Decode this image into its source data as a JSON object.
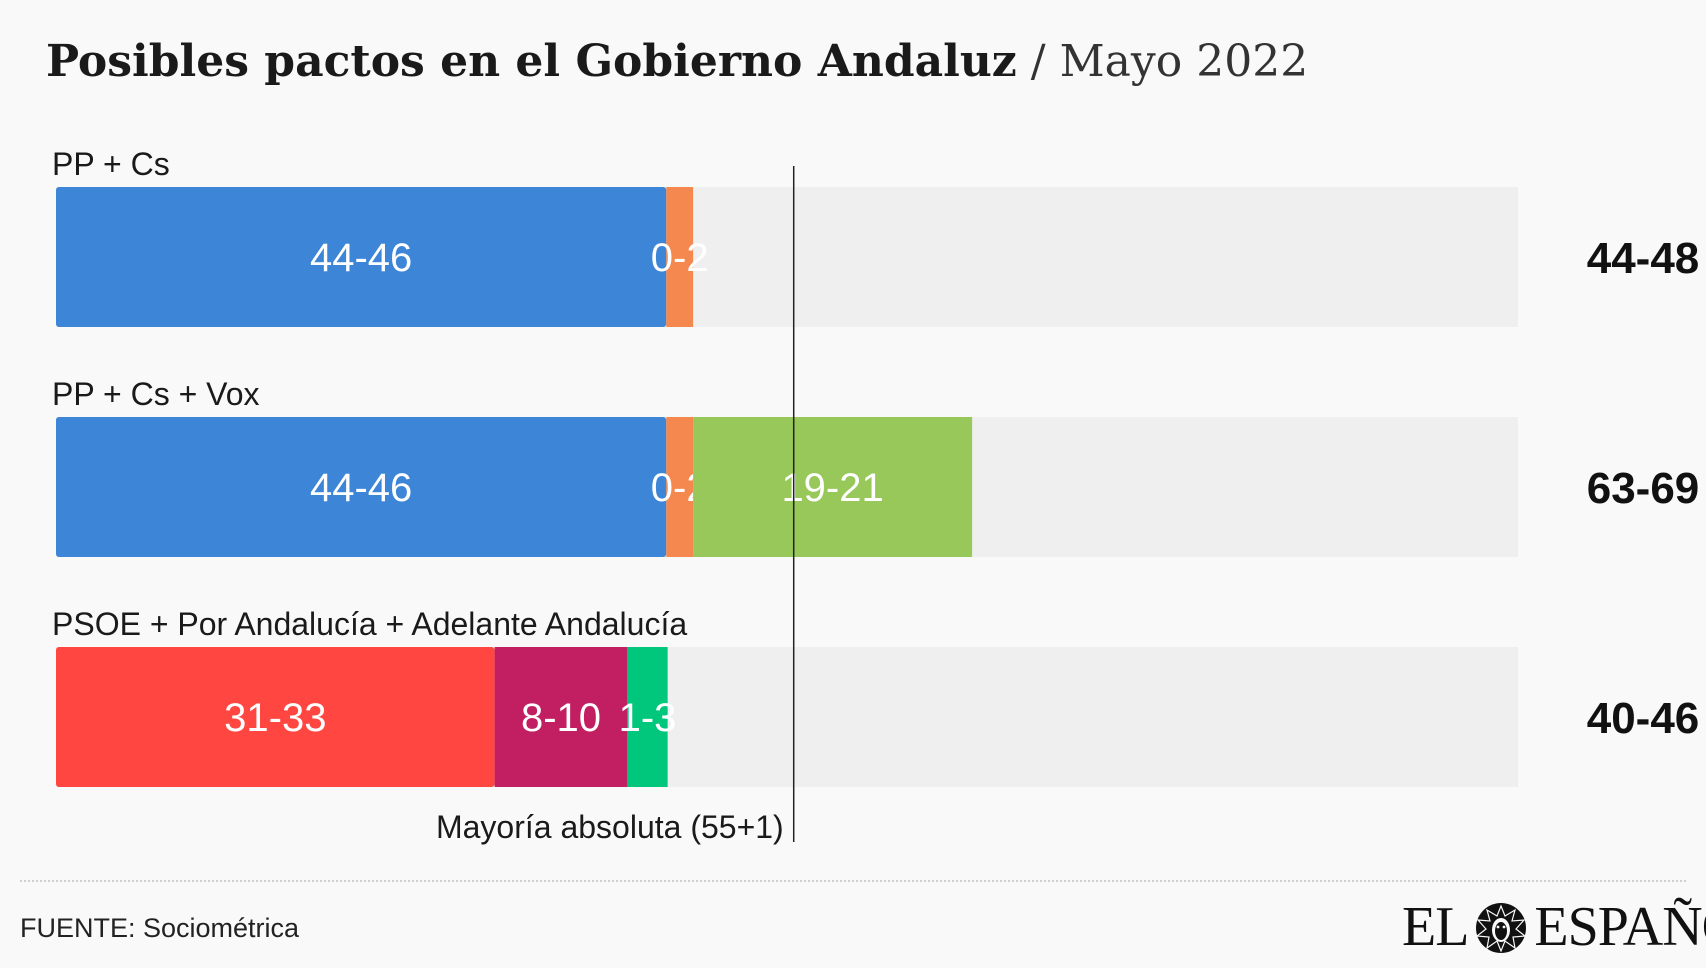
{
  "title": {
    "main": "Posibles pactos en el Gobierno Andaluz",
    "separator": "/",
    "subtitle": "Mayo 2022"
  },
  "chart_data": {
    "type": "bar",
    "orientation": "horizontal",
    "stacked": true,
    "xlim": [
      0,
      109
    ],
    "reference_line": {
      "value": 55,
      "label": "Mayoría absoluta (55+1)"
    },
    "rows": [
      {
        "label": "PP + Cs",
        "total_label": "44-48",
        "segments": [
          {
            "label": "44-46",
            "value": 45.5,
            "color": "#3d85d6"
          },
          {
            "label": "0-2",
            "value": 2,
            "color": "#f5884e"
          }
        ]
      },
      {
        "label": "PP + Cs + Vox",
        "total_label": "63-69",
        "segments": [
          {
            "label": "44-46",
            "value": 45.5,
            "color": "#3d85d6"
          },
          {
            "label": "0-2",
            "value": 2,
            "color": "#f5884e"
          },
          {
            "label": "19-21",
            "value": 20.8,
            "color": "#98c75a"
          }
        ]
      },
      {
        "label": "PSOE + Por Andalucía + Adelante Andalucía",
        "total_label": "40-46",
        "segments": [
          {
            "label": "31-33",
            "value": 32.7,
            "color": "#ff4641"
          },
          {
            "label": "8-10",
            "value": 9.9,
            "color": "#c21f63"
          },
          {
            "label": "1-3",
            "value": 3,
            "color": "#00c77b"
          }
        ]
      }
    ],
    "colors": {
      "track": "#efefef",
      "reference_line": "#222222",
      "segment_text": "#ffffff"
    }
  },
  "footer": {
    "source": "FUENTE: Sociométrica",
    "logo_left": "EL",
    "logo_right": "ESPAÑOL",
    "logo_icon": "lion-head-icon"
  }
}
